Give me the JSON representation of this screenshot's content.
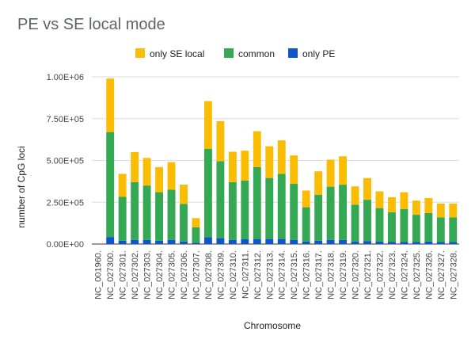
{
  "chart_data": {
    "type": "bar",
    "stacked": true,
    "title": "PE vs SE local mode",
    "xlabel": "Chromosome",
    "ylabel": "number of CpG loci",
    "ylim": [
      0,
      1000000
    ],
    "yticks": [
      "0.00E+00",
      "2.50E+05",
      "5.00E+05",
      "7.50E+05",
      "1.00E+06"
    ],
    "ytick_values": [
      0,
      250000,
      500000,
      750000,
      1000000
    ],
    "grid": true,
    "legend_position": "top",
    "categories": [
      "NC_001960.",
      "NC_027300.",
      "NC_027301.",
      "NC_027302.",
      "NC_027303.",
      "NC_027304.",
      "NC_027305.",
      "NC_027306.",
      "NC_027307.",
      "NC_027308.",
      "NC_027309.",
      "NC_027310.",
      "NC_027311.",
      "NC_027312.",
      "NC_027313.",
      "NC_027314.",
      "NC_027315.",
      "NC_027316.",
      "NC_027317.",
      "NC_027318.",
      "NC_027319.",
      "NC_027320.",
      "NC_027321.",
      "NC_027322.",
      "NC_027323.",
      "NC_027324.",
      "NC_027325.",
      "NC_027326.",
      "NC_027327.",
      "NC_027328."
    ],
    "series": [
      {
        "name": "only PE",
        "color": "#1155cc",
        "values": [
          0,
          42000,
          20000,
          25000,
          25000,
          20000,
          25000,
          15000,
          8000,
          40000,
          35000,
          25000,
          30000,
          30000,
          30000,
          30000,
          25000,
          15000,
          20000,
          25000,
          25000,
          15000,
          18000,
          15000,
          12000,
          12000,
          12000,
          15000,
          12000,
          12000
        ]
      },
      {
        "name": "common",
        "color": "#34a853",
        "values": [
          0,
          628000,
          262000,
          345000,
          325000,
          290000,
          300000,
          225000,
          92000,
          530000,
          460000,
          345000,
          350000,
          430000,
          365000,
          390000,
          335000,
          205000,
          275000,
          318000,
          330000,
          220000,
          247000,
          200000,
          178000,
          198000,
          163000,
          170000,
          148000,
          148000
        ]
      },
      {
        "name": "only SE local",
        "color": "#fbbc04",
        "values": [
          0,
          320000,
          138000,
          180000,
          165000,
          150000,
          165000,
          115000,
          55000,
          285000,
          240000,
          182000,
          178000,
          215000,
          190000,
          200000,
          170000,
          100000,
          140000,
          162000,
          170000,
          110000,
          130000,
          100000,
          90000,
          100000,
          85000,
          90000,
          82000,
          82000
        ]
      }
    ]
  }
}
